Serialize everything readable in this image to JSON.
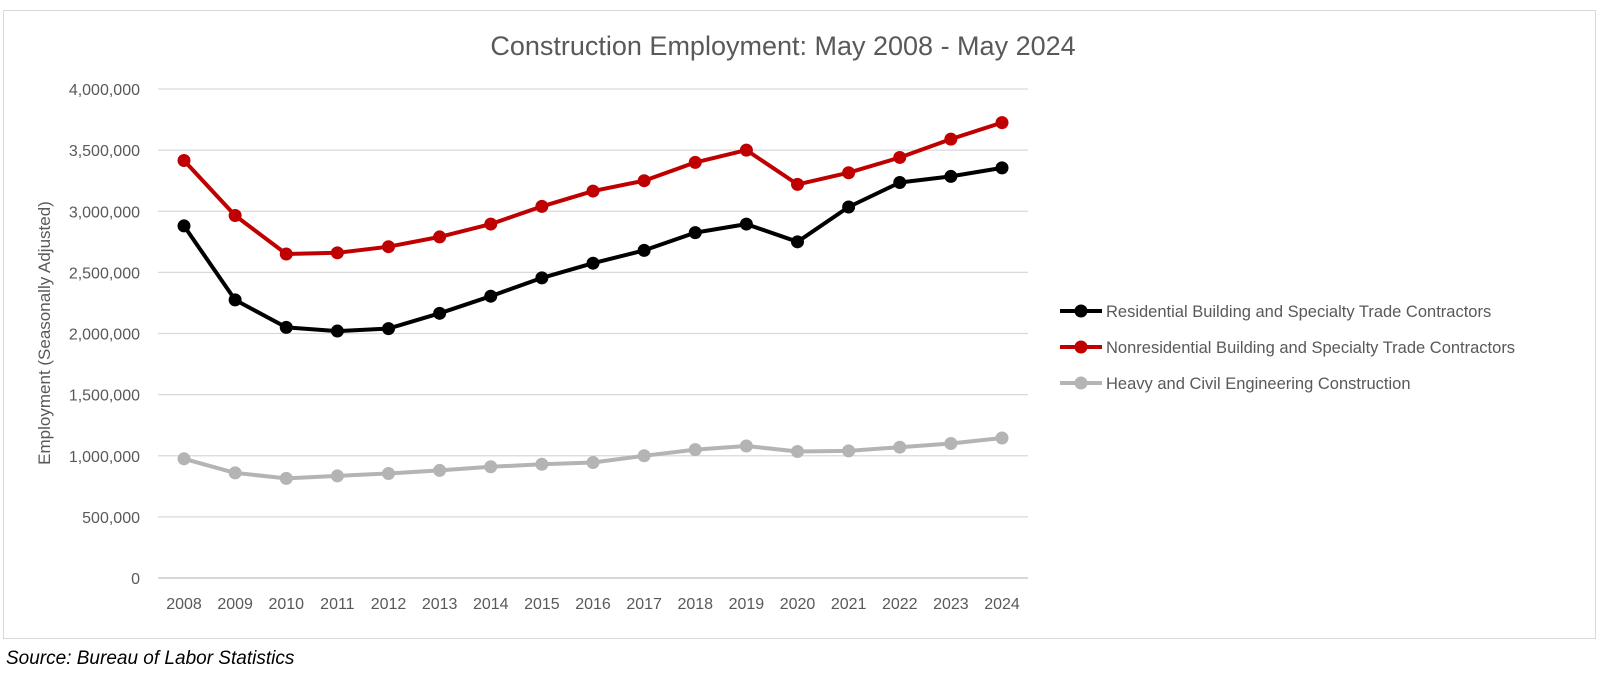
{
  "source_note": "Source: Bureau of Labor Statistics",
  "chart_data": {
    "type": "line",
    "title": "Construction Employment: May 2008 - May 2024",
    "xlabel": "",
    "ylabel": "Employment (Seasonally Adjusted)",
    "ylim": [
      0,
      4000000
    ],
    "yticks": [
      0,
      500000,
      1000000,
      1500000,
      2000000,
      2500000,
      3000000,
      3500000,
      4000000
    ],
    "ytick_labels": [
      "0",
      "500,000",
      "1,000,000",
      "1,500,000",
      "2,000,000",
      "2,500,000",
      "3,000,000",
      "3,500,000",
      "4,000,000"
    ],
    "grid": true,
    "legend_position": "right",
    "categories": [
      "2008",
      "2009",
      "2010",
      "2011",
      "2012",
      "2013",
      "2014",
      "2015",
      "2016",
      "2017",
      "2018",
      "2019",
      "2020",
      "2021",
      "2022",
      "2023",
      "2024"
    ],
    "series": [
      {
        "name": "Residential Building and Specialty Trade Contractors",
        "color": "#000000",
        "values": [
          2880000,
          2275000,
          2050000,
          2020000,
          2040000,
          2165000,
          2305000,
          2455000,
          2575000,
          2680000,
          2825000,
          2895000,
          2750000,
          3035000,
          3235000,
          3285000,
          3355000
        ]
      },
      {
        "name": "Nonresidential Building and Specialty Trade Contractors",
        "color": "#c00000",
        "values": [
          3415000,
          2965000,
          2650000,
          2660000,
          2710000,
          2790000,
          2895000,
          3040000,
          3165000,
          3250000,
          3400000,
          3500000,
          3220000,
          3315000,
          3440000,
          3590000,
          3725000
        ]
      },
      {
        "name": "Heavy and Civil Engineering Construction",
        "color": "#b4b4b4",
        "values": [
          975000,
          860000,
          815000,
          835000,
          855000,
          880000,
          910000,
          930000,
          945000,
          1000000,
          1050000,
          1080000,
          1035000,
          1040000,
          1070000,
          1100000,
          1145000
        ]
      }
    ]
  }
}
